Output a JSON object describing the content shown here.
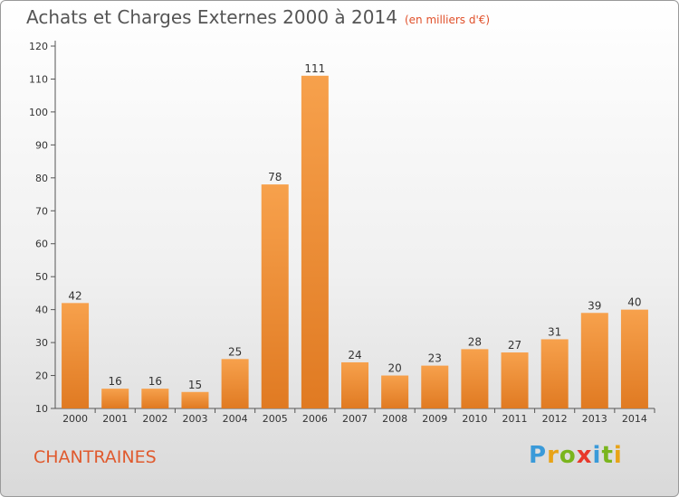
{
  "header": {
    "title": "Achats et Charges Externes 2000 à 2014",
    "subtitle": "(en milliers d'€)"
  },
  "commune": "CHANTRAINES",
  "brand": {
    "text": "Proxiti",
    "letter_colors": [
      "#3a9ad9",
      "#e8a317",
      "#7ab51d",
      "#e8392b",
      "#3a9ad9",
      "#7ab51d",
      "#e8a317"
    ]
  },
  "colors": {
    "bar_top": "#f7a14c",
    "bar_bottom": "#e07a22",
    "axis": "#555555",
    "grid": "#cccccc"
  },
  "chart_data": {
    "type": "bar",
    "categories": [
      "2000",
      "2001",
      "2002",
      "2003",
      "2004",
      "2005",
      "2006",
      "2007",
      "2008",
      "2009",
      "2010",
      "2011",
      "2012",
      "2013",
      "2014"
    ],
    "values": [
      42,
      16,
      16,
      15,
      25,
      78,
      111,
      24,
      20,
      23,
      28,
      27,
      31,
      39,
      40
    ],
    "data_labels": [
      "42",
      "16",
      "16",
      "15",
      "25",
      "78",
      "111",
      "24",
      "20",
      "23",
      "28",
      "27",
      "31",
      "39",
      "40"
    ],
    "yticks": [
      "10",
      "20",
      "30",
      "40",
      "50",
      "60",
      "70",
      "80",
      "90",
      "100",
      "110",
      "120"
    ],
    "ylim": [
      10,
      120
    ],
    "grid": "none",
    "legend": "none"
  }
}
